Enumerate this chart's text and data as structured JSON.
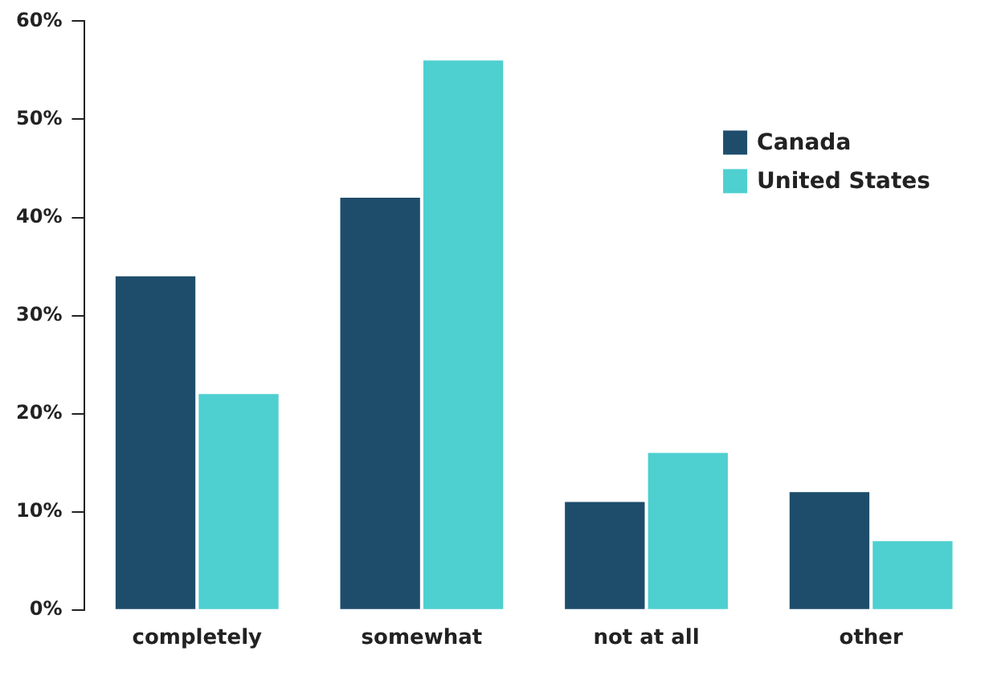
{
  "chart_data": {
    "type": "bar",
    "categories": [
      "completely",
      "somewhat",
      "not at all",
      "other"
    ],
    "series": [
      {
        "name": "Canada",
        "color": "#1e4d6b",
        "values": [
          34,
          42,
          11,
          12
        ]
      },
      {
        "name": "United States",
        "color": "#4ecfd0",
        "values": [
          22,
          56,
          16,
          7
        ]
      }
    ],
    "ylim": [
      0,
      60
    ],
    "yticks": [
      {
        "value": 0,
        "label": "0%"
      },
      {
        "value": 10,
        "label": "10%"
      },
      {
        "value": 20,
        "label": "20%"
      },
      {
        "value": 30,
        "label": "30%"
      },
      {
        "value": 40,
        "label": "40%"
      },
      {
        "value": 50,
        "label": "50%"
      },
      {
        "value": 60,
        "label": "60%"
      }
    ],
    "grid": false,
    "legend": "top right"
  }
}
